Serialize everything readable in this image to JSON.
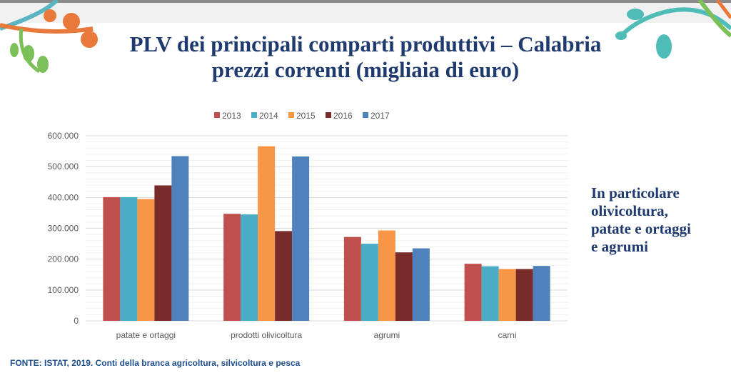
{
  "title_line1": "PLV dei principali comparti produttivi – Calabria",
  "title_line2": "prezzi correnti (migliaia di euro)",
  "side_note": [
    "In particolare",
    "olivicoltura,",
    "patate e ortaggi",
    "e agrumi"
  ],
  "source": "FONTE:  ISTAT, 2019. Conti della branca agricoltura, silvicoltura e pesca",
  "chart_data": {
    "type": "bar",
    "categories": [
      "patate e ortaggi",
      "prodotti olivicoltura",
      "agrumi",
      "carni"
    ],
    "series": [
      {
        "name": "2013",
        "color": "#c0504d",
        "values": [
          401000,
          347000,
          272000,
          185000
        ]
      },
      {
        "name": "2014",
        "color": "#4bacc6",
        "values": [
          401000,
          345000,
          250000,
          177000
        ]
      },
      {
        "name": "2015",
        "color": "#f79646",
        "values": [
          395000,
          566000,
          293000,
          168000
        ]
      },
      {
        "name": "2016",
        "color": "#772c2a",
        "values": [
          439000,
          291000,
          222000,
          168000
        ]
      },
      {
        "name": "2017",
        "color": "#4f81bd",
        "values": [
          534000,
          533000,
          235000,
          178000
        ]
      }
    ],
    "ylim": [
      0,
      600000
    ],
    "yticks": [
      "0",
      "100.000",
      "200.000",
      "300.000",
      "400.000",
      "500.000",
      "600.000"
    ],
    "grid": true,
    "legend": "top"
  }
}
